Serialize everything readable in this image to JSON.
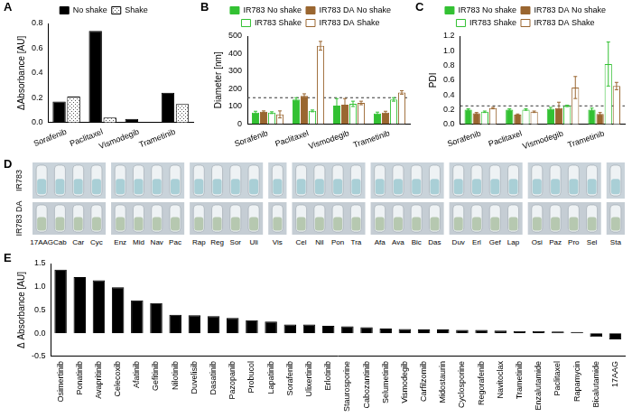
{
  "chart_data": [
    {
      "panel": "A",
      "type": "bar",
      "ylabel": "ΔAbsorbance [AU]",
      "categories": [
        "Sorafenib",
        "Paclitaxel",
        "Vismodegib",
        "Trametinib"
      ],
      "series": [
        {
          "name": "No shake",
          "color": "#000000",
          "marker": "filled",
          "values": [
            0.17,
            0.74,
            0.03,
            0.24
          ]
        },
        {
          "name": "Shake",
          "color": "#ffffff",
          "marker": "dotted",
          "values": [
            0.21,
            0.04,
            0,
            0.15
          ]
        }
      ],
      "ylim": [
        0,
        0.8
      ],
      "yticks": [
        {
          "value": 0,
          "label": "0.0"
        },
        0.2,
        0.4,
        0.6,
        0.8
      ],
      "grid": false,
      "legend": "top"
    },
    {
      "panel": "B",
      "type": "bar",
      "ylabel": "Diameter [nm]",
      "categories": [
        "Sorafenib",
        "Paclitaxel",
        "Vismodegib",
        "Trametinib"
      ],
      "series": [
        {
          "name": "IR783 No shake",
          "color": "#33c133",
          "marker": "filled",
          "values": [
            65,
            140,
            105,
            60
          ],
          "errors": [
            8,
            10,
            40,
            8
          ]
        },
        {
          "name": "IR783 DA No shake",
          "color": "#9a6630",
          "marker": "filled",
          "values": [
            70,
            160,
            110,
            65
          ],
          "errors": [
            5,
            12,
            35,
            8
          ]
        },
        {
          "name": "IR783 Shake",
          "color": "#33c133",
          "marker": "open",
          "values": [
            65,
            75,
            115,
            140
          ],
          "errors": [
            5,
            5,
            15,
            10
          ]
        },
        {
          "name": "IR783 DA Shake",
          "color": "#9a6630",
          "marker": "open",
          "values": [
            55,
            445,
            120,
            180
          ],
          "errors": [
            20,
            25,
            10,
            10
          ]
        }
      ],
      "reference_line": 150,
      "ylim": [
        0,
        500
      ],
      "yticks": [
        0,
        100,
        200,
        300,
        400,
        500
      ],
      "grid": false,
      "legend": "top"
    },
    {
      "panel": "C",
      "type": "bar",
      "ylabel": "PDI",
      "categories": [
        "Sorafenib",
        "Paclitaxel",
        "Vismodegib",
        "Trametinib"
      ],
      "series": [
        {
          "name": "IR783 No shake",
          "color": "#33c133",
          "marker": "filled",
          "values": [
            0.2,
            0.2,
            0.21,
            0.2
          ],
          "errors": [
            0.01,
            0.01,
            0.02,
            0.02
          ]
        },
        {
          "name": "IR783 DA No shake",
          "color": "#9a6630",
          "marker": "filled",
          "values": [
            0.15,
            0.13,
            0.22,
            0.14
          ],
          "errors": [
            0.01,
            0.01,
            0.08,
            0.02
          ]
        },
        {
          "name": "IR783 Shake",
          "color": "#33c133",
          "marker": "open",
          "values": [
            0.17,
            0.2,
            0.25,
            0.82
          ],
          "errors": [
            0.01,
            0.01,
            0.01,
            0.3
          ]
        },
        {
          "name": "IR783 DA Shake",
          "color": "#9a6630",
          "marker": "open",
          "values": [
            0.22,
            0.17,
            0.5,
            0.52
          ],
          "errors": [
            0.01,
            0.01,
            0.15,
            0.05
          ]
        }
      ],
      "reference_line": 0.25,
      "ylim": [
        0,
        1.2
      ],
      "yticks": [
        {
          "value": 0,
          "label": "0.0"
        },
        0.2,
        0.4,
        0.6,
        0.8,
        {
          "value": 1,
          "label": "1.0"
        },
        1.2
      ],
      "grid": false,
      "legend": "top"
    },
    {
      "panel": "E",
      "type": "bar",
      "ylabel": "Δ Absorbance [AU]",
      "categories": [
        "Osimertinib",
        "Ponatinib",
        "Avapritinib",
        "Celecoxib",
        "Afatinib",
        "Gefitinib",
        "Nilotinib",
        "Duvelisib",
        "Dasatinib",
        "Pazopanib",
        "Probucol",
        "Lapatinib",
        "Sorafenib",
        "Ulixertinib",
        "Erlotinib",
        "Staurosporine",
        "Cabozantinib",
        "Selumetinib",
        "Vismodegib",
        "Carfilzomib",
        "Midostaurin",
        "Cyclosporine",
        "Regorafenib",
        "Navitoclax",
        "Trametinib",
        "Enzalutamide",
        "Paclitaxel",
        "Rapamycin",
        "Bicalutamide",
        "17AAG"
      ],
      "values": [
        1.37,
        1.21,
        1.14,
        0.99,
        0.71,
        0.65,
        0.4,
        0.39,
        0.37,
        0.33,
        0.28,
        0.25,
        0.19,
        0.19,
        0.16,
        0.15,
        0.13,
        0.1,
        0.09,
        0.08,
        0.08,
        0.07,
        0.07,
        0.06,
        0.05,
        0.05,
        0.04,
        0.03,
        -0.08,
        -0.13
      ],
      "color": "#000000",
      "ylim": [
        -0.5,
        1.5
      ],
      "yticks": [
        -0.5,
        {
          "value": 0,
          "label": "0.0"
        },
        0.5,
        {
          "value": 1,
          "label": "1.0"
        },
        1.5
      ],
      "grid": false
    }
  ],
  "photo": {
    "panel": "D",
    "rows": [
      "IR783",
      "IR783 DA"
    ],
    "groups": [
      [
        "17AAG",
        "Cab",
        "Car",
        "Cyc"
      ],
      [
        "Enz",
        "Mid",
        "Nav",
        "Pac"
      ],
      [
        "Rap",
        "Reg",
        "Sor",
        "Uli"
      ],
      [
        "Vis"
      ],
      [
        "Cel",
        "Nil",
        "Pon",
        "Tra"
      ],
      [
        "Afa",
        "Ava",
        "Bic",
        "Das"
      ],
      [
        "Duv",
        "Erl",
        "Gef",
        "Lap"
      ],
      [
        "Osi",
        "Paz",
        "Pro",
        "Sel"
      ],
      [
        "Sta"
      ]
    ]
  }
}
